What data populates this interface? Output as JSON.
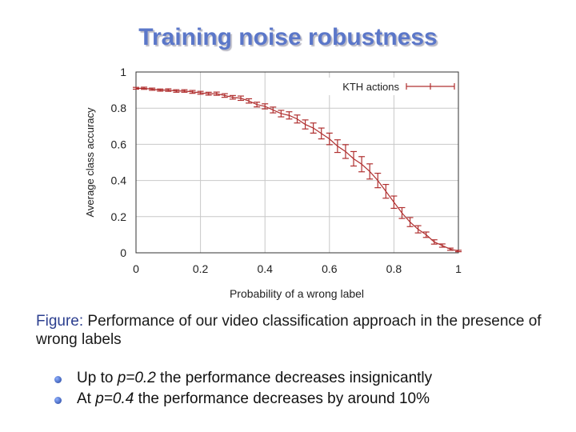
{
  "slide": {
    "title": "Training noise robustness",
    "caption_label": "Figure:",
    "caption_text": "Performance of our video classification approach in the presence of wrong labels",
    "bullets": [
      {
        "pre": "Up to ",
        "em": "p=0.2",
        "post": " the performance decreases insignicantly"
      },
      {
        "pre": "At ",
        "em": "p=0.4",
        "post": " the performance decreases by around 10%"
      }
    ]
  },
  "chart_data": {
    "type": "line",
    "xlabel": "Probability of a wrong label",
    "ylabel": "Average class accuracy",
    "xlim": [
      0,
      1
    ],
    "ylim": [
      0,
      1
    ],
    "xticks": [
      "0",
      "0.2",
      "0.4",
      "0.6",
      "0.8",
      "1"
    ],
    "yticks": [
      "0",
      "0.2",
      "0.4",
      "0.6",
      "0.8",
      "1"
    ],
    "grid": true,
    "legend": "top-right",
    "color": "#b03030",
    "series": [
      {
        "name": "KTH actions",
        "x": [
          0.0,
          0.025,
          0.05,
          0.075,
          0.1,
          0.125,
          0.15,
          0.175,
          0.2,
          0.225,
          0.25,
          0.275,
          0.3,
          0.325,
          0.35,
          0.375,
          0.4,
          0.425,
          0.45,
          0.475,
          0.5,
          0.525,
          0.55,
          0.575,
          0.6,
          0.625,
          0.65,
          0.675,
          0.7,
          0.725,
          0.75,
          0.775,
          0.8,
          0.825,
          0.85,
          0.875,
          0.9,
          0.925,
          0.95,
          0.975,
          1.0
        ],
        "y": [
          0.91,
          0.91,
          0.905,
          0.9,
          0.9,
          0.895,
          0.895,
          0.89,
          0.885,
          0.88,
          0.88,
          0.87,
          0.86,
          0.855,
          0.84,
          0.82,
          0.81,
          0.79,
          0.77,
          0.76,
          0.74,
          0.71,
          0.69,
          0.66,
          0.63,
          0.59,
          0.56,
          0.52,
          0.49,
          0.45,
          0.4,
          0.34,
          0.28,
          0.22,
          0.17,
          0.13,
          0.1,
          0.06,
          0.04,
          0.02,
          0.01
        ],
        "err": [
          0.005,
          0.006,
          0.006,
          0.006,
          0.007,
          0.007,
          0.007,
          0.008,
          0.008,
          0.008,
          0.009,
          0.01,
          0.01,
          0.012,
          0.012,
          0.013,
          0.014,
          0.016,
          0.018,
          0.02,
          0.022,
          0.025,
          0.028,
          0.03,
          0.032,
          0.035,
          0.038,
          0.04,
          0.042,
          0.042,
          0.04,
          0.038,
          0.034,
          0.03,
          0.025,
          0.02,
          0.015,
          0.012,
          0.009,
          0.006,
          0.004
        ]
      }
    ]
  }
}
